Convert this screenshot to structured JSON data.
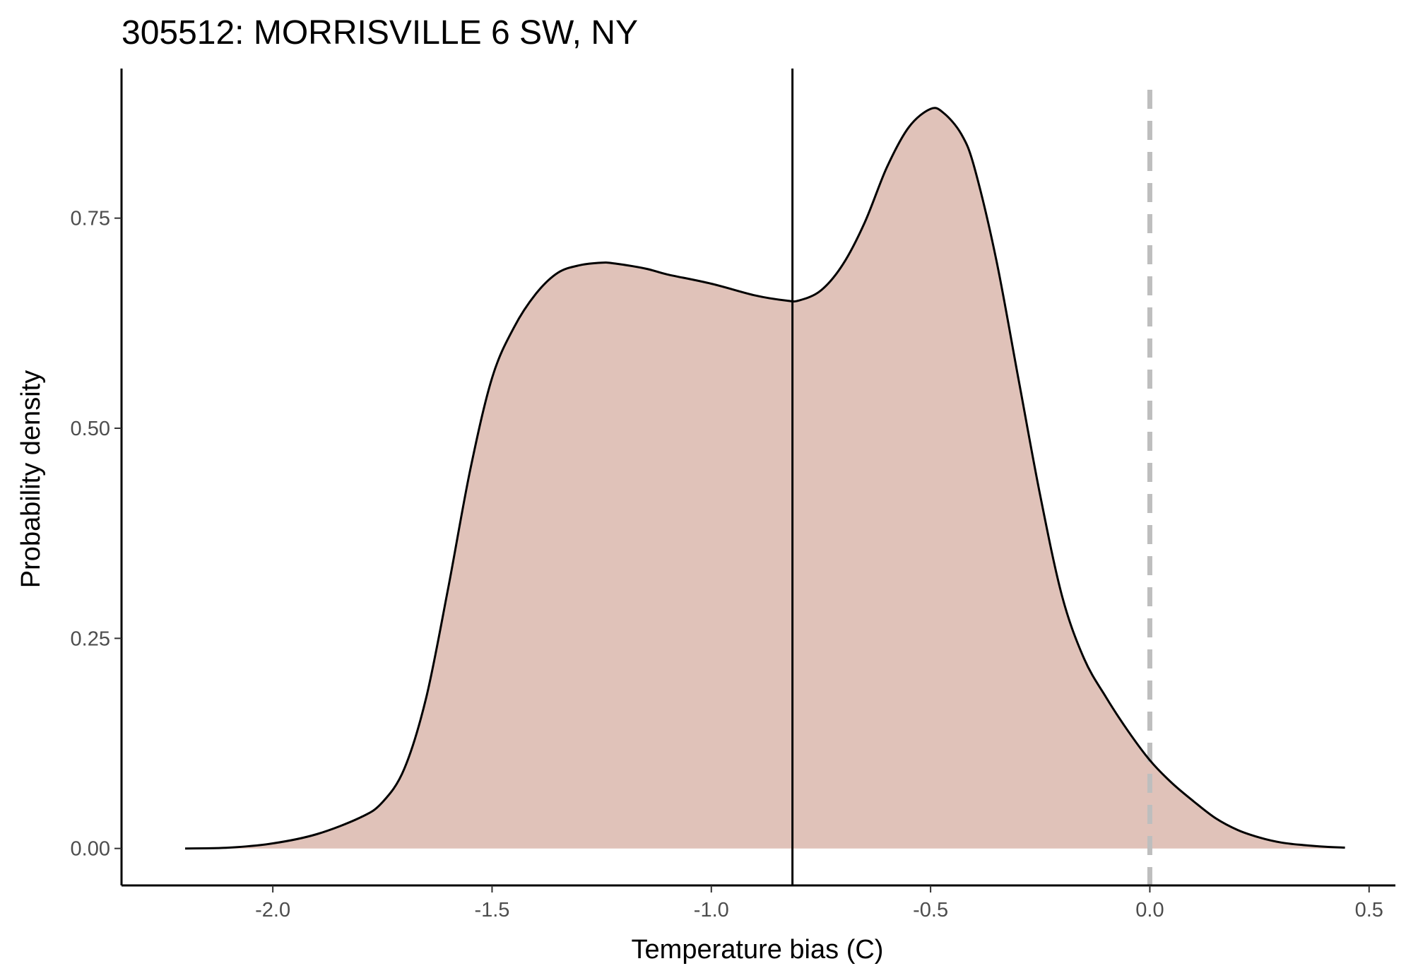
{
  "chart_data": {
    "type": "area",
    "title": "305512: MORRISVILLE 6 SW, NY",
    "xlabel": "Temperature bias (C)",
    "ylabel": "Probability density",
    "xlim": [
      -2.345,
      0.56
    ],
    "ylim": [
      -0.044,
      0.928
    ],
    "x_ticks": [
      -2.0,
      -1.5,
      -1.0,
      -0.5,
      0.0,
      0.5
    ],
    "x_tick_labels": [
      "-2.0",
      "-1.5",
      "-1.0",
      "-0.5",
      "0.0",
      "0.5"
    ],
    "y_ticks": [
      0.0,
      0.25,
      0.5,
      0.75
    ],
    "y_tick_labels": [
      "0.00",
      "0.25",
      "0.50",
      "0.75"
    ],
    "grid": false,
    "legend": "none",
    "series": [
      {
        "x": [
          -2.2,
          -2.1,
          -2.0,
          -1.9,
          -1.8,
          -1.75,
          -1.7,
          -1.65,
          -1.6,
          -1.55,
          -1.5,
          -1.45,
          -1.4,
          -1.35,
          -1.3,
          -1.25,
          -1.22,
          -1.15,
          -1.1,
          -1.0,
          -0.9,
          -0.83,
          -0.8,
          -0.75,
          -0.7,
          -0.65,
          -0.6,
          -0.55,
          -0.5,
          -0.47,
          -0.43,
          -0.4,
          -0.35,
          -0.3,
          -0.25,
          -0.2,
          -0.15,
          -0.1,
          -0.05,
          0.0,
          0.05,
          0.1,
          0.15,
          0.2,
          0.25,
          0.3,
          0.35,
          0.4,
          0.445
        ],
        "y": [
          0.0,
          0.001,
          0.006,
          0.017,
          0.037,
          0.055,
          0.095,
          0.18,
          0.31,
          0.45,
          0.56,
          0.62,
          0.66,
          0.685,
          0.694,
          0.697,
          0.696,
          0.69,
          0.683,
          0.672,
          0.658,
          0.652,
          0.652,
          0.664,
          0.695,
          0.745,
          0.81,
          0.858,
          0.88,
          0.875,
          0.85,
          0.81,
          0.7,
          0.56,
          0.42,
          0.3,
          0.226,
          0.18,
          0.14,
          0.105,
          0.078,
          0.056,
          0.036,
          0.022,
          0.013,
          0.007,
          0.004,
          0.002,
          0.001
        ],
        "fill_color": "#e0c2b9",
        "line_color": "#000000"
      }
    ],
    "annotations": [
      {
        "type": "vline",
        "x": -0.815,
        "style": "solid",
        "color": "#000000"
      },
      {
        "type": "vline",
        "x": 0.0,
        "style": "dashed",
        "color": "#bebebe"
      }
    ]
  }
}
